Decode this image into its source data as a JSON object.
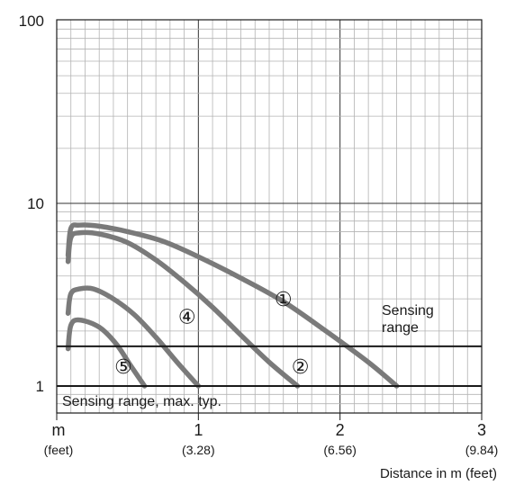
{
  "chart_data": {
    "type": "line",
    "yscale": "log",
    "ylim": [
      1,
      100
    ],
    "xlim": [
      0,
      3
    ],
    "xlabel": "Distance in m (feet)",
    "ylabel": "",
    "title": "",
    "grid": true,
    "y_ticks": [
      {
        "value": 1,
        "label": "1"
      },
      {
        "value": 10,
        "label": "10"
      },
      {
        "value": 100,
        "label": "100"
      }
    ],
    "x_ticks": [
      {
        "value": 0,
        "label": "m",
        "sublabel": "(feet)"
      },
      {
        "value": 1,
        "label": "1",
        "sublabel": "(3.28)"
      },
      {
        "value": 2,
        "label": "2",
        "sublabel": "(6.56)"
      },
      {
        "value": 3,
        "label": "3",
        "sublabel": "(9.84)"
      }
    ],
    "series": [
      {
        "name": "①",
        "x": [
          0.08,
          0.1,
          0.16,
          0.3,
          0.5,
          0.75,
          1.0,
          1.3,
          1.6,
          1.9,
          2.2,
          2.4
        ],
        "y": [
          5.2,
          7.3,
          7.6,
          7.5,
          7.0,
          6.2,
          5.1,
          3.9,
          2.9,
          2.0,
          1.35,
          1.0
        ]
      },
      {
        "name": "②",
        "x": [
          0.08,
          0.1,
          0.16,
          0.3,
          0.5,
          0.7,
          0.9,
          1.1,
          1.3,
          1.5,
          1.7
        ],
        "y": [
          4.8,
          6.5,
          6.9,
          6.8,
          6.1,
          4.9,
          3.7,
          2.7,
          1.9,
          1.35,
          1.0
        ]
      },
      {
        "name": "④",
        "x": [
          0.08,
          0.1,
          0.16,
          0.26,
          0.4,
          0.55,
          0.7,
          0.85,
          1.0
        ],
        "y": [
          2.5,
          3.2,
          3.4,
          3.4,
          3.0,
          2.45,
          1.85,
          1.35,
          1.0
        ]
      },
      {
        "name": "⑤",
        "x": [
          0.08,
          0.1,
          0.16,
          0.3,
          0.42,
          0.52,
          0.62
        ],
        "y": [
          1.6,
          2.15,
          2.3,
          2.1,
          1.7,
          1.3,
          1.0
        ]
      }
    ],
    "reference_lines": [
      {
        "y": 1.0,
        "label": "Sensing range, max. typ."
      },
      {
        "y": 1.65,
        "label": "Sensing range"
      }
    ],
    "series_labels": [
      {
        "text": "①",
        "x": 1.6,
        "y": 2.75
      },
      {
        "text": "②",
        "x": 1.72,
        "y": 1.17
      },
      {
        "text": "④",
        "x": 0.92,
        "y": 2.2
      },
      {
        "text": "⑤",
        "x": 0.47,
        "y": 1.17
      }
    ],
    "colors": {
      "series": "#7a7a7a",
      "axes": "#1a1a1a",
      "grid": "#b3b3b3"
    }
  }
}
